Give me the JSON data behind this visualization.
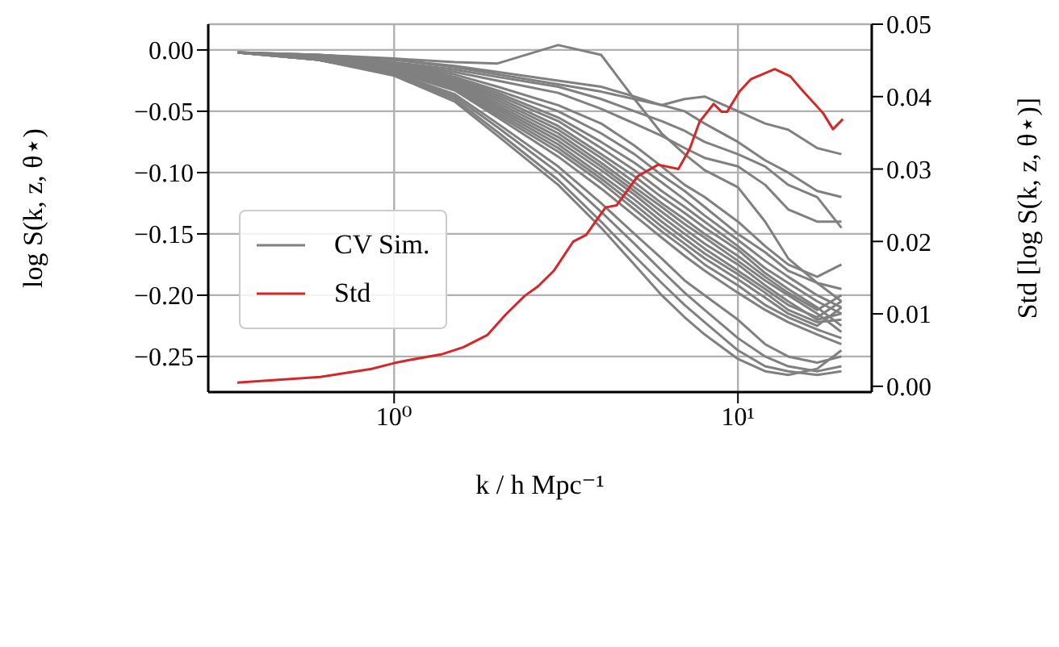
{
  "chart_data": {
    "type": "line",
    "xlabel": "k / h Mpc⁻¹",
    "ylabel": "log S(k, z, θ⋆)",
    "y2label": "Std [log S(k, z, θ⋆)]",
    "log": "x",
    "grid": true,
    "legend": "center left",
    "xlim": [
      0.288,
      24.5
    ],
    "xticks": [
      {
        "value": 1,
        "label": "10⁰"
      },
      {
        "value": 10,
        "label": "10¹"
      }
    ],
    "ylim": [
      -0.279,
      0.021
    ],
    "yticks": [
      {
        "value": 0,
        "label": "0.00"
      },
      {
        "value": -0.05,
        "label": "−0.05"
      },
      {
        "value": -0.1,
        "label": "−0.10"
      },
      {
        "value": -0.15,
        "label": "−0.15"
      },
      {
        "value": -0.2,
        "label": "−0.20"
      },
      {
        "value": -0.25,
        "label": "−0.25"
      }
    ],
    "y2lim": [
      -0.0008,
      0.05
    ],
    "y2ticks": [
      {
        "value": 0,
        "label": "0.00"
      },
      {
        "value": 0.01,
        "label": "0.01"
      },
      {
        "value": 0.02,
        "label": "0.02"
      },
      {
        "value": 0.03,
        "label": "0.03"
      },
      {
        "value": 0.04,
        "label": "0.04"
      },
      {
        "value": 0.05,
        "label": "0.05"
      }
    ],
    "x": [
      0.35,
      0.6,
      1,
      1.5,
      2,
      3,
      4,
      5,
      6,
      7,
      8,
      10,
      12,
      14,
      17,
      20
    ],
    "series": [
      {
        "name": "CV Sim.",
        "color": "#808080",
        "values": [
          -0.002,
          -0.004,
          -0.007,
          -0.01,
          -0.011,
          0.004,
          -0.004,
          -0.04,
          -0.068,
          -0.085,
          -0.098,
          -0.112,
          -0.14,
          -0.17,
          -0.19,
          -0.205
        ]
      },
      {
        "color": "#808080",
        "values": [
          -0.002,
          -0.004,
          -0.008,
          -0.013,
          -0.018,
          -0.025,
          -0.03,
          -0.038,
          -0.045,
          -0.04,
          -0.038,
          -0.05,
          -0.06,
          -0.065,
          -0.08,
          -0.085
        ]
      },
      {
        "color": "#808080",
        "values": [
          -0.002,
          -0.004,
          -0.008,
          -0.014,
          -0.02,
          -0.028,
          -0.034,
          -0.04,
          -0.045,
          -0.05,
          -0.06,
          -0.075,
          -0.09,
          -0.1,
          -0.115,
          -0.12
        ]
      },
      {
        "color": "#808080",
        "values": [
          -0.002,
          -0.005,
          -0.01,
          -0.016,
          -0.022,
          -0.03,
          -0.04,
          -0.05,
          -0.058,
          -0.066,
          -0.075,
          -0.085,
          -0.095,
          -0.11,
          -0.12,
          -0.145
        ]
      },
      {
        "color": "#808080",
        "values": [
          -0.002,
          -0.005,
          -0.011,
          -0.018,
          -0.025,
          -0.035,
          -0.048,
          -0.06,
          -0.07,
          -0.08,
          -0.088,
          -0.095,
          -0.11,
          -0.13,
          -0.14,
          -0.14
        ]
      },
      {
        "color": "#808080",
        "values": [
          -0.002,
          -0.005,
          -0.012,
          -0.02,
          -0.03,
          -0.045,
          -0.06,
          -0.078,
          -0.095,
          -0.11,
          -0.12,
          -0.14,
          -0.16,
          -0.175,
          -0.185,
          -0.175
        ]
      },
      {
        "color": "#808080",
        "values": [
          -0.002,
          -0.005,
          -0.012,
          -0.022,
          -0.033,
          -0.05,
          -0.068,
          -0.085,
          -0.102,
          -0.115,
          -0.128,
          -0.15,
          -0.165,
          -0.18,
          -0.19,
          -0.195
        ]
      },
      {
        "color": "#808080",
        "values": [
          -0.002,
          -0.006,
          -0.013,
          -0.023,
          -0.035,
          -0.055,
          -0.075,
          -0.092,
          -0.108,
          -0.122,
          -0.135,
          -0.155,
          -0.172,
          -0.185,
          -0.2,
          -0.21
        ]
      },
      {
        "color": "#808080",
        "values": [
          -0.002,
          -0.006,
          -0.013,
          -0.024,
          -0.037,
          -0.058,
          -0.08,
          -0.098,
          -0.115,
          -0.128,
          -0.14,
          -0.16,
          -0.178,
          -0.19,
          -0.205,
          -0.215
        ]
      },
      {
        "color": "#808080",
        "values": [
          -0.002,
          -0.006,
          -0.014,
          -0.025,
          -0.039,
          -0.062,
          -0.085,
          -0.103,
          -0.12,
          -0.133,
          -0.145,
          -0.163,
          -0.182,
          -0.195,
          -0.21,
          -0.225
        ]
      },
      {
        "color": "#808080",
        "values": [
          -0.002,
          -0.006,
          -0.014,
          -0.026,
          -0.041,
          -0.065,
          -0.088,
          -0.108,
          -0.125,
          -0.138,
          -0.15,
          -0.168,
          -0.185,
          -0.198,
          -0.212,
          -0.2
        ]
      },
      {
        "color": "#808080",
        "values": [
          -0.002,
          -0.006,
          -0.015,
          -0.027,
          -0.043,
          -0.068,
          -0.092,
          -0.112,
          -0.128,
          -0.142,
          -0.153,
          -0.172,
          -0.188,
          -0.2,
          -0.215,
          -0.23
        ]
      },
      {
        "color": "#808080",
        "values": [
          -0.002,
          -0.007,
          -0.015,
          -0.028,
          -0.045,
          -0.071,
          -0.095,
          -0.115,
          -0.132,
          -0.146,
          -0.158,
          -0.175,
          -0.192,
          -0.205,
          -0.22,
          -0.215
        ]
      },
      {
        "color": "#808080",
        "values": [
          -0.002,
          -0.007,
          -0.016,
          -0.029,
          -0.047,
          -0.074,
          -0.098,
          -0.118,
          -0.136,
          -0.15,
          -0.162,
          -0.18,
          -0.195,
          -0.208,
          -0.218,
          -0.205
        ]
      },
      {
        "color": "#808080",
        "values": [
          -0.002,
          -0.007,
          -0.016,
          -0.03,
          -0.049,
          -0.077,
          -0.102,
          -0.122,
          -0.14,
          -0.154,
          -0.166,
          -0.183,
          -0.198,
          -0.212,
          -0.222,
          -0.22
        ]
      },
      {
        "color": "#808080",
        "values": [
          -0.002,
          -0.007,
          -0.017,
          -0.031,
          -0.051,
          -0.08,
          -0.105,
          -0.126,
          -0.144,
          -0.158,
          -0.17,
          -0.187,
          -0.202,
          -0.215,
          -0.225,
          -0.21
        ]
      },
      {
        "color": "#808080",
        "values": [
          -0.002,
          -0.007,
          -0.017,
          -0.032,
          -0.053,
          -0.083,
          -0.108,
          -0.13,
          -0.148,
          -0.162,
          -0.175,
          -0.192,
          -0.208,
          -0.218,
          -0.228,
          -0.235
        ]
      },
      {
        "color": "#808080",
        "values": [
          -0.002,
          -0.008,
          -0.018,
          -0.033,
          -0.055,
          -0.087,
          -0.113,
          -0.135,
          -0.153,
          -0.168,
          -0.18,
          -0.198,
          -0.212,
          -0.222,
          -0.232,
          -0.24
        ]
      },
      {
        "color": "#808080",
        "values": [
          -0.002,
          -0.008,
          -0.019,
          -0.036,
          -0.06,
          -0.095,
          -0.125,
          -0.15,
          -0.17,
          -0.188,
          -0.2,
          -0.22,
          -0.24,
          -0.25,
          -0.255,
          -0.25
        ]
      },
      {
        "color": "#808080",
        "values": [
          -0.002,
          -0.008,
          -0.02,
          -0.038,
          -0.063,
          -0.1,
          -0.132,
          -0.158,
          -0.18,
          -0.198,
          -0.212,
          -0.235,
          -0.25,
          -0.258,
          -0.262,
          -0.258
        ]
      },
      {
        "color": "#808080",
        "values": [
          -0.002,
          -0.008,
          -0.02,
          -0.04,
          -0.067,
          -0.106,
          -0.14,
          -0.168,
          -0.19,
          -0.208,
          -0.222,
          -0.245,
          -0.258,
          -0.262,
          -0.265,
          -0.262
        ]
      },
      {
        "color": "#808080",
        "values": [
          -0.002,
          -0.008,
          -0.021,
          -0.042,
          -0.07,
          -0.11,
          -0.145,
          -0.175,
          -0.2,
          -0.218,
          -0.232,
          -0.252,
          -0.262,
          -0.265,
          -0.26,
          -0.245
        ]
      },
      {
        "name": "Std",
        "color": "#d62728",
        "axis": "y2",
        "x": [
          0.35,
          0.61,
          0.86,
          1.0,
          1.1,
          1.37,
          1.59,
          1.87,
          2.11,
          2.4,
          2.62,
          2.92,
          3.32,
          3.62,
          4.12,
          4.44,
          5.11,
          5.86,
          6.71,
          7.24,
          7.73,
          8.5,
          8.97,
          9.3,
          10.1,
          10.9,
          12.8,
          14.2,
          15.3,
          17.7,
          18.9,
          20.2
        ],
        "values": [
          0.0005,
          0.0013,
          0.0024,
          0.0032,
          0.0036,
          0.0044,
          0.0054,
          0.0071,
          0.0099,
          0.0125,
          0.0138,
          0.016,
          0.02,
          0.0209,
          0.0247,
          0.025,
          0.029,
          0.0306,
          0.03,
          0.0328,
          0.0365,
          0.039,
          0.0379,
          0.0379,
          0.0407,
          0.0424,
          0.0438,
          0.0428,
          0.041,
          0.0377,
          0.0355,
          0.0369
        ]
      }
    ]
  }
}
